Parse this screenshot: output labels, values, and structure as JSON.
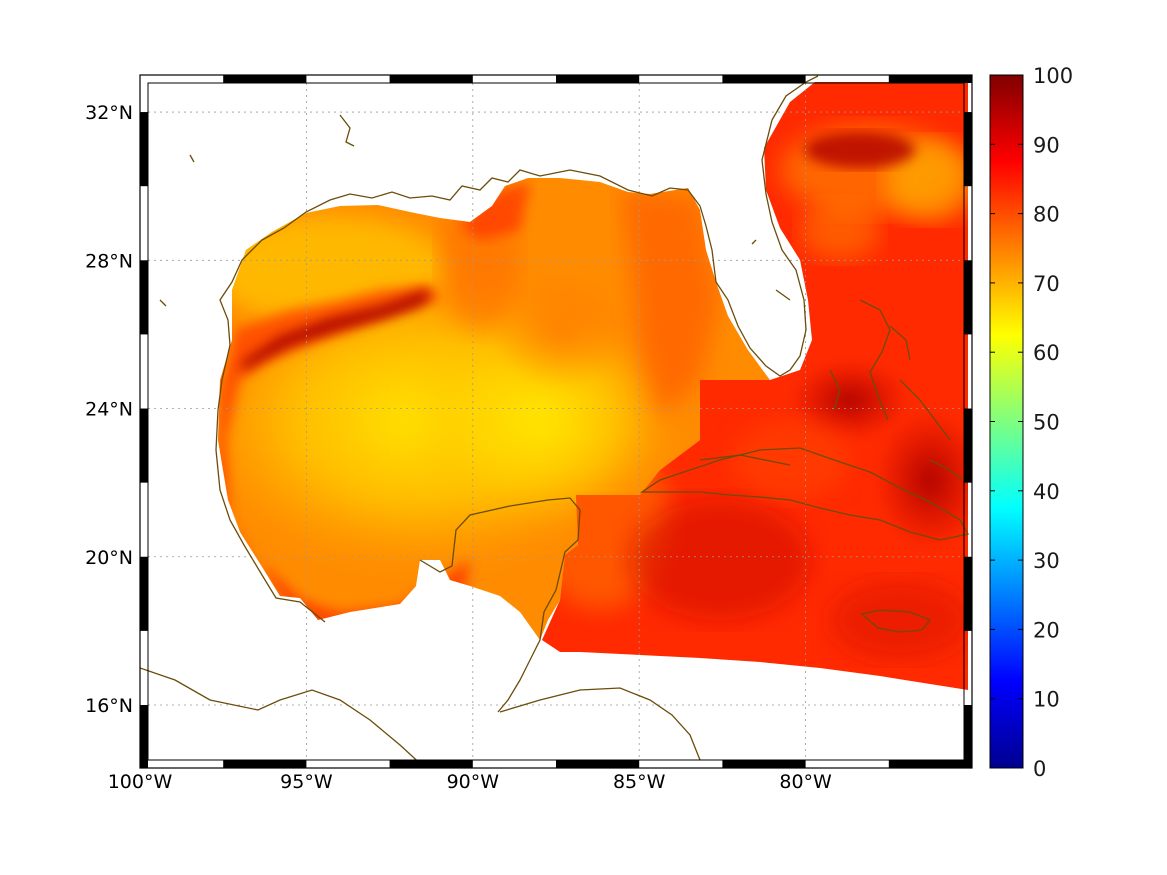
{
  "map": {
    "lon_range": [
      -100,
      -75
    ],
    "lat_range": [
      14.3,
      33
    ],
    "lon_ticks": [
      {
        "value": -100,
        "label": "100°W"
      },
      {
        "value": -95,
        "label": "95°W"
      },
      {
        "value": -90,
        "label": "90°W"
      },
      {
        "value": -85,
        "label": "85°W"
      },
      {
        "value": -80,
        "label": "80°W"
      }
    ],
    "lat_ticks": [
      {
        "value": 32,
        "label": "32°N"
      },
      {
        "value": 28,
        "label": "28°N"
      },
      {
        "value": 24,
        "label": "24°N"
      },
      {
        "value": 20,
        "label": "20°N"
      },
      {
        "value": 16,
        "label": "16°N"
      }
    ],
    "coastline_color": "#6b4c0b",
    "grid": true
  },
  "colorbar": {
    "min": 0,
    "max": 100,
    "colormap": "jet",
    "ticks": [
      {
        "value": 100,
        "label": "100"
      },
      {
        "value": 90,
        "label": "90"
      },
      {
        "value": 80,
        "label": "80"
      },
      {
        "value": 70,
        "label": "70"
      },
      {
        "value": 60,
        "label": "60"
      },
      {
        "value": 50,
        "label": "50"
      },
      {
        "value": 40,
        "label": "40"
      },
      {
        "value": 30,
        "label": "30"
      },
      {
        "value": 20,
        "label": "20"
      },
      {
        "value": 10,
        "label": "10"
      },
      {
        "value": 0,
        "label": "0"
      }
    ]
  }
}
